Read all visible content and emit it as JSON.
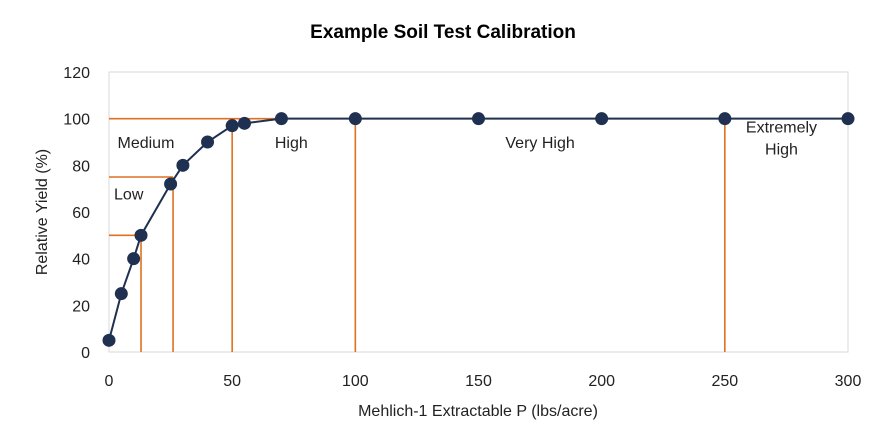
{
  "chart_data": {
    "type": "line",
    "title": "Example Soil Test Calibration",
    "xlabel": "Mehlich-1 Extractable P (lbs/acre)",
    "ylabel": "Relative Yield (%)",
    "xlim": [
      0,
      300
    ],
    "ylim": [
      0,
      120
    ],
    "x_ticks": [
      "0",
      "50",
      "100",
      "150",
      "200",
      "250",
      "300"
    ],
    "y_ticks": [
      "0",
      "20",
      "40",
      "60",
      "80",
      "100",
      "120"
    ],
    "grid": false,
    "series": [
      {
        "x": [
          0,
          5,
          10,
          13,
          25,
          30,
          40,
          50,
          55,
          70,
          100,
          150,
          200,
          250,
          300
        ],
        "y": [
          5,
          25,
          40,
          50,
          72,
          80,
          90,
          97,
          98,
          100,
          100,
          100,
          100,
          100,
          100
        ],
        "color": "#1f3050"
      }
    ],
    "reference_lines": {
      "color": "#e07020",
      "horizontal": [
        {
          "y": 100,
          "x_from": 0,
          "x_to": 300
        },
        {
          "y": 75,
          "x_from": 0,
          "x_to": 26
        },
        {
          "y": 50,
          "x_from": 0,
          "x_to": 14
        }
      ],
      "vertical": [
        {
          "x": 13,
          "y_from": 0,
          "y_to": 50
        },
        {
          "x": 26,
          "y_from": 0,
          "y_to": 75
        },
        {
          "x": 50,
          "y_from": 0,
          "y_to": 100
        },
        {
          "x": 100,
          "y_from": 0,
          "y_to": 100
        },
        {
          "x": 250,
          "y_from": 0,
          "y_to": 100
        }
      ]
    },
    "zones": [
      {
        "lines": [
          "Low"
        ],
        "x": 8,
        "y": 68
      },
      {
        "lines": [
          "Medium"
        ],
        "x": 15,
        "y": 90
      },
      {
        "lines": [
          "High"
        ],
        "x": 74,
        "y": 90
      },
      {
        "lines": [
          "Very High"
        ],
        "x": 175,
        "y": 90
      },
      {
        "lines": [
          "Extremely",
          "High"
        ],
        "x": 273,
        "y": 92
      }
    ]
  }
}
